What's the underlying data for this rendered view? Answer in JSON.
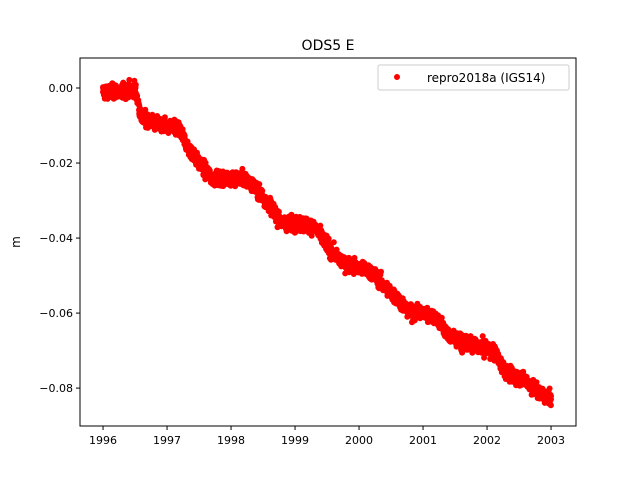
{
  "chart_data": {
    "type": "scatter",
    "title": "ODS5 E",
    "xlabel": "",
    "ylabel": "m",
    "xlim": [
      1995.64,
      2003.39
    ],
    "ylim": [
      -0.0901,
      0.008
    ],
    "xticks": [
      1996,
      1997,
      1998,
      1999,
      2000,
      2001,
      2002,
      2003
    ],
    "xtick_labels": [
      "1996",
      "1997",
      "1998",
      "1999",
      "2000",
      "2001",
      "2002",
      "2003"
    ],
    "yticks": [
      0.0,
      -0.02,
      -0.04,
      -0.06,
      -0.08
    ],
    "ytick_labels": [
      "0.00",
      "−0.02",
      "−0.04",
      "−0.06",
      "−0.08"
    ],
    "grid": false,
    "legend": {
      "placement": "top-right",
      "entries": [
        "repro2018a (IGS14)"
      ]
    },
    "series": [
      {
        "name": "repro2018a (IGS14)",
        "color": "#ff0000",
        "marker": "circle",
        "note_trend_points": "approximate running mean of the daily positions",
        "x": [
          1996.0,
          1996.3,
          1996.5,
          1996.6,
          1996.9,
          1997.2,
          1997.3,
          1997.5,
          1997.7,
          1998.0,
          1998.2,
          1998.4,
          1998.6,
          1998.8,
          1999.0,
          1999.3,
          1999.5,
          1999.7,
          2000.0,
          2000.2,
          2000.4,
          2000.6,
          2000.8,
          2001.0,
          2001.2,
          2001.4,
          2001.6,
          2001.9,
          2002.1,
          2002.3,
          2002.6,
          2002.8,
          2003.0
        ],
        "y": [
          -0.001,
          -0.001,
          0.0,
          -0.008,
          -0.01,
          -0.011,
          -0.015,
          -0.02,
          -0.024,
          -0.024,
          -0.024,
          -0.027,
          -0.031,
          -0.036,
          -0.036,
          -0.037,
          -0.042,
          -0.046,
          -0.048,
          -0.049,
          -0.053,
          -0.056,
          -0.06,
          -0.06,
          -0.061,
          -0.066,
          -0.068,
          -0.069,
          -0.07,
          -0.076,
          -0.078,
          -0.081,
          -0.083
        ]
      }
    ]
  }
}
